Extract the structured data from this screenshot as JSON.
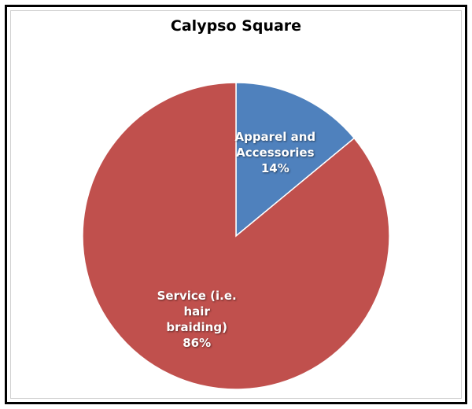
{
  "chart_data": {
    "type": "pie",
    "title": "Calypso Square",
    "categories": [
      "Apparel and Accessories",
      "Service (i.e. hair braiding)"
    ],
    "values": [
      14,
      86
    ],
    "value_labels": [
      "14%",
      "86%"
    ],
    "colors": [
      "#4f81bd",
      "#c0504d"
    ]
  }
}
